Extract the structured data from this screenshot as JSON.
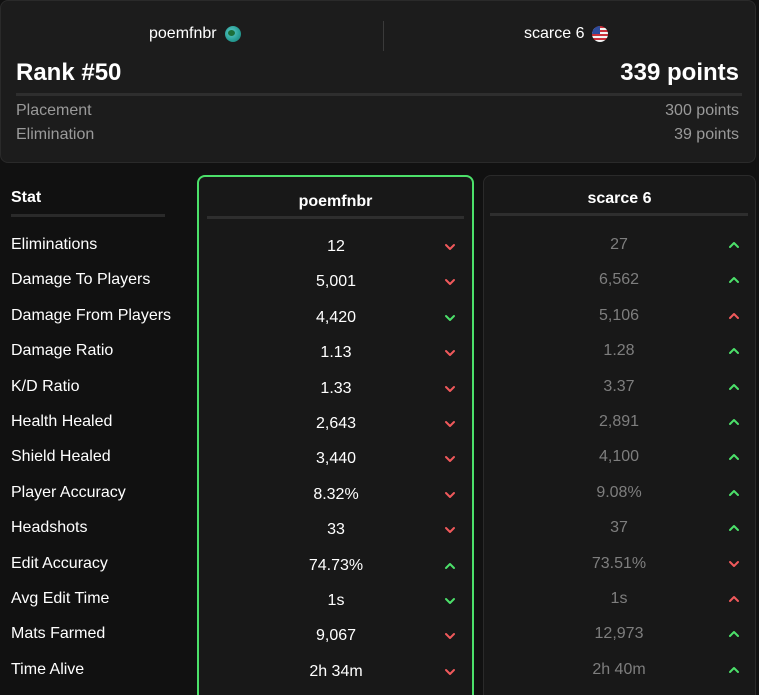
{
  "header": {
    "player1": {
      "name": "poemfnbr",
      "flag_icon": "globe-icon"
    },
    "player2": {
      "name": "scarce 6",
      "flag_icon": "us-flag-icon"
    },
    "rank": "Rank #50",
    "total_points": "339 points",
    "breakdown": [
      {
        "label": "Placement",
        "value": "300 points"
      },
      {
        "label": "Elimination",
        "value": "39 points"
      }
    ]
  },
  "table": {
    "stat_header": "Stat",
    "player1_header": "poemfnbr",
    "player2_header": "scarce 6",
    "colors": {
      "up": "#4ce06a",
      "down": "#f0595b"
    },
    "rows": [
      {
        "label": "Eliminations",
        "p1": "12",
        "p1_trend": "down",
        "p2": "27",
        "p2_trend": "up"
      },
      {
        "label": "Damage To Players",
        "p1": "5,001",
        "p1_trend": "down",
        "p2": "6,562",
        "p2_trend": "up"
      },
      {
        "label": "Damage From Players",
        "p1": "4,420",
        "p1_trend": "good-down",
        "p2": "5,106",
        "p2_trend": "bad-up"
      },
      {
        "label": "Damage Ratio",
        "p1": "1.13",
        "p1_trend": "down",
        "p2": "1.28",
        "p2_trend": "up"
      },
      {
        "label": "K/D Ratio",
        "p1": "1.33",
        "p1_trend": "down",
        "p2": "3.37",
        "p2_trend": "up"
      },
      {
        "label": "Health Healed",
        "p1": "2,643",
        "p1_trend": "down",
        "p2": "2,891",
        "p2_trend": "up"
      },
      {
        "label": "Shield Healed",
        "p1": "3,440",
        "p1_trend": "down",
        "p2": "4,100",
        "p2_trend": "up"
      },
      {
        "label": "Player Accuracy",
        "p1": "8.32%",
        "p1_trend": "down",
        "p2": "9.08%",
        "p2_trend": "up"
      },
      {
        "label": "Headshots",
        "p1": "33",
        "p1_trend": "down",
        "p2": "37",
        "p2_trend": "up"
      },
      {
        "label": "Edit Accuracy",
        "p1": "74.73%",
        "p1_trend": "up",
        "p2": "73.51%",
        "p2_trend": "down"
      },
      {
        "label": "Avg Edit Time",
        "p1": "1s",
        "p1_trend": "good-down",
        "p2": "1s",
        "p2_trend": "bad-up"
      },
      {
        "label": "Mats Farmed",
        "p1": "9,067",
        "p1_trend": "down",
        "p2": "12,973",
        "p2_trend": "up"
      },
      {
        "label": "Time Alive",
        "p1": "2h 34m",
        "p1_trend": "down",
        "p2": "2h 40m",
        "p2_trend": "up"
      }
    ]
  }
}
